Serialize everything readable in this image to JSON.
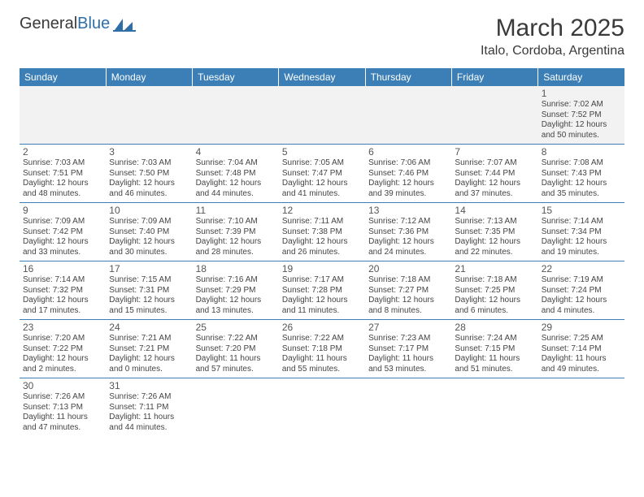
{
  "logo": {
    "text_dark": "General",
    "text_blue": "Blue"
  },
  "title": "March 2025",
  "location": "Italo, Cordoba, Argentina",
  "colors": {
    "header_bg": "#3b7fb6",
    "header_text": "#ffffff",
    "cell_border": "#3b7fb6",
    "alt_row_bg": "#f2f2f2",
    "text": "#444444",
    "daynum": "#555555"
  },
  "weekdays": [
    "Sunday",
    "Monday",
    "Tuesday",
    "Wednesday",
    "Thursday",
    "Friday",
    "Saturday"
  ],
  "weeks": [
    [
      null,
      null,
      null,
      null,
      null,
      null,
      {
        "n": "1",
        "sr": "7:02 AM",
        "ss": "7:52 PM",
        "dl": "12 hours and 50 minutes."
      }
    ],
    [
      {
        "n": "2",
        "sr": "7:03 AM",
        "ss": "7:51 PM",
        "dl": "12 hours and 48 minutes."
      },
      {
        "n": "3",
        "sr": "7:03 AM",
        "ss": "7:50 PM",
        "dl": "12 hours and 46 minutes."
      },
      {
        "n": "4",
        "sr": "7:04 AM",
        "ss": "7:48 PM",
        "dl": "12 hours and 44 minutes."
      },
      {
        "n": "5",
        "sr": "7:05 AM",
        "ss": "7:47 PM",
        "dl": "12 hours and 41 minutes."
      },
      {
        "n": "6",
        "sr": "7:06 AM",
        "ss": "7:46 PM",
        "dl": "12 hours and 39 minutes."
      },
      {
        "n": "7",
        "sr": "7:07 AM",
        "ss": "7:44 PM",
        "dl": "12 hours and 37 minutes."
      },
      {
        "n": "8",
        "sr": "7:08 AM",
        "ss": "7:43 PM",
        "dl": "12 hours and 35 minutes."
      }
    ],
    [
      {
        "n": "9",
        "sr": "7:09 AM",
        "ss": "7:42 PM",
        "dl": "12 hours and 33 minutes."
      },
      {
        "n": "10",
        "sr": "7:09 AM",
        "ss": "7:40 PM",
        "dl": "12 hours and 30 minutes."
      },
      {
        "n": "11",
        "sr": "7:10 AM",
        "ss": "7:39 PM",
        "dl": "12 hours and 28 minutes."
      },
      {
        "n": "12",
        "sr": "7:11 AM",
        "ss": "7:38 PM",
        "dl": "12 hours and 26 minutes."
      },
      {
        "n": "13",
        "sr": "7:12 AM",
        "ss": "7:36 PM",
        "dl": "12 hours and 24 minutes."
      },
      {
        "n": "14",
        "sr": "7:13 AM",
        "ss": "7:35 PM",
        "dl": "12 hours and 22 minutes."
      },
      {
        "n": "15",
        "sr": "7:14 AM",
        "ss": "7:34 PM",
        "dl": "12 hours and 19 minutes."
      }
    ],
    [
      {
        "n": "16",
        "sr": "7:14 AM",
        "ss": "7:32 PM",
        "dl": "12 hours and 17 minutes."
      },
      {
        "n": "17",
        "sr": "7:15 AM",
        "ss": "7:31 PM",
        "dl": "12 hours and 15 minutes."
      },
      {
        "n": "18",
        "sr": "7:16 AM",
        "ss": "7:29 PM",
        "dl": "12 hours and 13 minutes."
      },
      {
        "n": "19",
        "sr": "7:17 AM",
        "ss": "7:28 PM",
        "dl": "12 hours and 11 minutes."
      },
      {
        "n": "20",
        "sr": "7:18 AM",
        "ss": "7:27 PM",
        "dl": "12 hours and 8 minutes."
      },
      {
        "n": "21",
        "sr": "7:18 AM",
        "ss": "7:25 PM",
        "dl": "12 hours and 6 minutes."
      },
      {
        "n": "22",
        "sr": "7:19 AM",
        "ss": "7:24 PM",
        "dl": "12 hours and 4 minutes."
      }
    ],
    [
      {
        "n": "23",
        "sr": "7:20 AM",
        "ss": "7:22 PM",
        "dl": "12 hours and 2 minutes."
      },
      {
        "n": "24",
        "sr": "7:21 AM",
        "ss": "7:21 PM",
        "dl": "12 hours and 0 minutes."
      },
      {
        "n": "25",
        "sr": "7:22 AM",
        "ss": "7:20 PM",
        "dl": "11 hours and 57 minutes."
      },
      {
        "n": "26",
        "sr": "7:22 AM",
        "ss": "7:18 PM",
        "dl": "11 hours and 55 minutes."
      },
      {
        "n": "27",
        "sr": "7:23 AM",
        "ss": "7:17 PM",
        "dl": "11 hours and 53 minutes."
      },
      {
        "n": "28",
        "sr": "7:24 AM",
        "ss": "7:15 PM",
        "dl": "11 hours and 51 minutes."
      },
      {
        "n": "29",
        "sr": "7:25 AM",
        "ss": "7:14 PM",
        "dl": "11 hours and 49 minutes."
      }
    ],
    [
      {
        "n": "30",
        "sr": "7:26 AM",
        "ss": "7:13 PM",
        "dl": "11 hours and 47 minutes."
      },
      {
        "n": "31",
        "sr": "7:26 AM",
        "ss": "7:11 PM",
        "dl": "11 hours and 44 minutes."
      },
      null,
      null,
      null,
      null,
      null
    ]
  ],
  "labels": {
    "sunrise": "Sunrise:",
    "sunset": "Sunset:",
    "daylight": "Daylight:"
  }
}
